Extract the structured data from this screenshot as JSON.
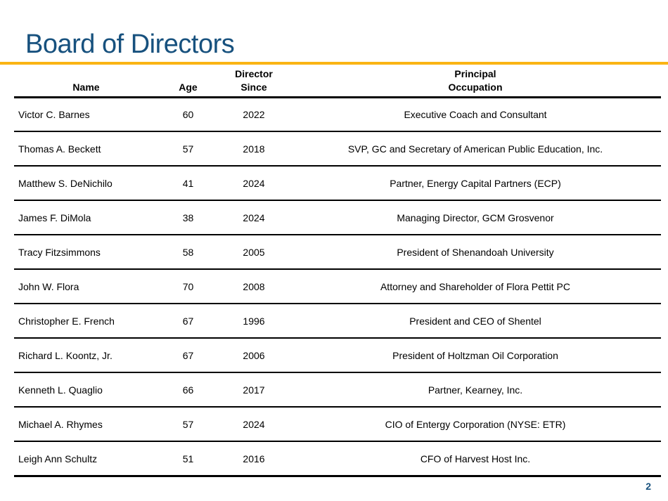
{
  "slide": {
    "title": "Board of Directors",
    "page_number": "2",
    "accent_color_gold": "#FAB413",
    "title_color_blue": "#17517E",
    "line_color": "#000000"
  },
  "table": {
    "columns": {
      "name": "Name",
      "age": "Age",
      "since": "Director\nSince",
      "occupation": "Principal\nOccupation"
    },
    "rows": [
      {
        "name": "Victor C. Barnes",
        "age": "60",
        "since": "2022",
        "occupation": "Executive Coach and Consultant"
      },
      {
        "name": "Thomas A. Beckett",
        "age": "57",
        "since": "2018",
        "occupation": "SVP, GC and Secretary of American Public Education, Inc."
      },
      {
        "name": "Matthew S. DeNichilo",
        "age": "41",
        "since": "2024",
        "occupation": "Partner, Energy Capital Partners (ECP)"
      },
      {
        "name": "James F. DiMola",
        "age": "38",
        "since": "2024",
        "occupation": "Managing Director, GCM Grosvenor"
      },
      {
        "name": "Tracy Fitzsimmons",
        "age": "58",
        "since": "2005",
        "occupation": "President of Shenandoah University"
      },
      {
        "name": "John W. Flora",
        "age": "70",
        "since": "2008",
        "occupation": "Attorney and Shareholder of Flora Pettit PC"
      },
      {
        "name": "Christopher E. French",
        "age": "67",
        "since": "1996",
        "occupation": "President and CEO of Shentel"
      },
      {
        "name": "Richard L. Koontz, Jr.",
        "age": "67",
        "since": "2006",
        "occupation": "President of Holtzman Oil Corporation"
      },
      {
        "name": "Kenneth L. Quaglio",
        "age": "66",
        "since": "2017",
        "occupation": "Partner, Kearney, Inc."
      },
      {
        "name": "Michael A. Rhymes",
        "age": "57",
        "since": "2024",
        "occupation": "CIO of Entergy Corporation (NYSE: ETR)"
      },
      {
        "name": "Leigh Ann Schultz",
        "age": "51",
        "since": "2016",
        "occupation": "CFO of Harvest Host Inc."
      }
    ]
  }
}
